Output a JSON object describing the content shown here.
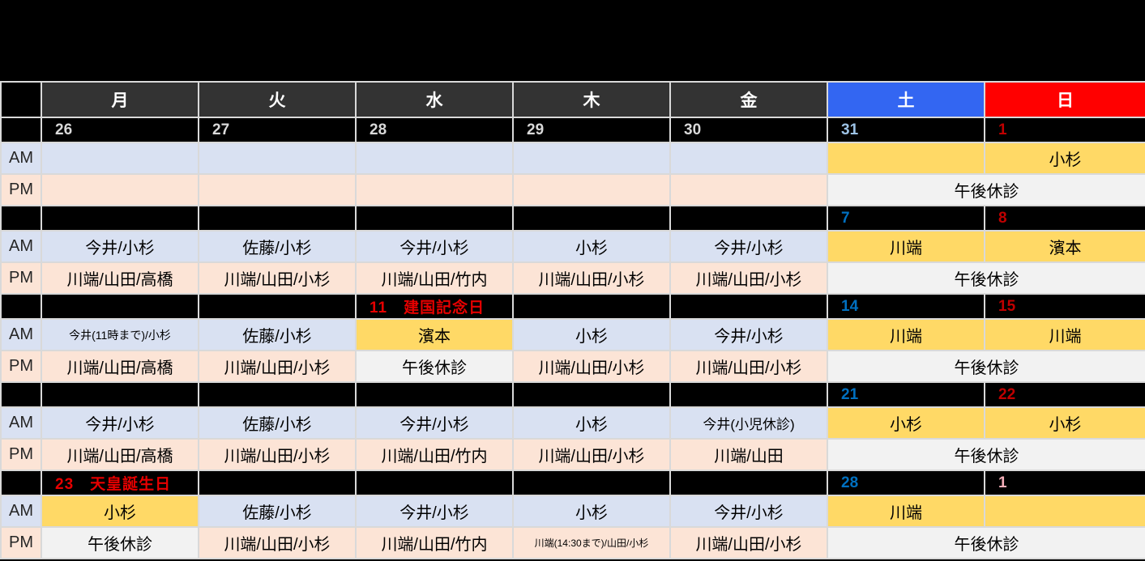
{
  "colors": {
    "page_bg": "#000000",
    "grid": "#D9D9D9",
    "weekday_header_bg": "#333333",
    "sat_header_bg": "#3366F2",
    "sun_header_bg": "#FF0000",
    "header_text": "#FFFFFF",
    "am_bg": "#D9E1F2",
    "pm_bg": "#FCE4D6",
    "duty_bg": "#FFD966",
    "closed_bg": "#F2F2F2",
    "date_bg": "#000000",
    "date_text": "#D9D9D9",
    "date_sat_blue": "#0070C0",
    "date_sun_red": "#C00000",
    "holiday_red": "#E60000"
  },
  "labels": {
    "am": "AM",
    "pm": "PM"
  },
  "header": {
    "days": [
      {
        "label": "月",
        "type": "weekday"
      },
      {
        "label": "火",
        "type": "weekday"
      },
      {
        "label": "水",
        "type": "weekday"
      },
      {
        "label": "木",
        "type": "weekday"
      },
      {
        "label": "金",
        "type": "weekday"
      },
      {
        "label": "土",
        "type": "sat"
      },
      {
        "label": "日",
        "type": "sun"
      }
    ]
  },
  "weeks": [
    {
      "dates": [
        {
          "t": "26",
          "color": "#D9D9D9"
        },
        {
          "t": "27",
          "color": "#D9D9D9"
        },
        {
          "t": "28",
          "color": "#D9D9D9"
        },
        {
          "t": "29",
          "color": "#D9D9D9"
        },
        {
          "t": "30",
          "color": "#D9D9D9"
        },
        {
          "t": "31",
          "color": "#9DC3E6"
        },
        {
          "t": "1",
          "color": "#C00000"
        }
      ],
      "am": [
        {
          "t": ""
        },
        {
          "t": ""
        },
        {
          "t": ""
        },
        {
          "t": ""
        },
        {
          "t": ""
        },
        {
          "t": "",
          "s": "duty"
        },
        {
          "t": "小杉",
          "s": "duty"
        }
      ],
      "pm": [
        {
          "t": ""
        },
        {
          "t": ""
        },
        {
          "t": ""
        },
        {
          "t": ""
        },
        {
          "t": ""
        },
        {
          "t": "午後休診",
          "s": "closed",
          "span": 2
        }
      ]
    },
    {
      "dates": [
        {
          "t": ""
        },
        {
          "t": ""
        },
        {
          "t": ""
        },
        {
          "t": ""
        },
        {
          "t": ""
        },
        {
          "t": "7",
          "color": "#0070C0"
        },
        {
          "t": "8",
          "color": "#C00000"
        }
      ],
      "am": [
        {
          "t": "今井/小杉"
        },
        {
          "t": "佐藤/小杉"
        },
        {
          "t": "今井/小杉"
        },
        {
          "t": "小杉"
        },
        {
          "t": "今井/小杉"
        },
        {
          "t": "川端",
          "s": "duty"
        },
        {
          "t": "濱本",
          "s": "duty"
        }
      ],
      "pm": [
        {
          "t": "川端/山田/高橋"
        },
        {
          "t": "川端/山田/小杉"
        },
        {
          "t": "川端/山田/竹内"
        },
        {
          "t": "川端/山田/小杉"
        },
        {
          "t": "川端/山田/小杉"
        },
        {
          "t": "午後休診",
          "s": "closed",
          "span": 2
        }
      ]
    },
    {
      "dates": [
        {
          "t": ""
        },
        {
          "t": ""
        },
        {
          "t": "11　建国記念日",
          "color": "#E60000",
          "holiday": true
        },
        {
          "t": ""
        },
        {
          "t": ""
        },
        {
          "t": "14",
          "color": "#0070C0"
        },
        {
          "t": "15",
          "color": "#C00000"
        }
      ],
      "am": [
        {
          "t": "今井(11時まで)/小杉",
          "size": 14
        },
        {
          "t": "佐藤/小杉"
        },
        {
          "t": "濱本",
          "s": "duty"
        },
        {
          "t": "小杉"
        },
        {
          "t": "今井/小杉"
        },
        {
          "t": "川端",
          "s": "duty"
        },
        {
          "t": "川端",
          "s": "duty"
        }
      ],
      "pm": [
        {
          "t": "川端/山田/高橋"
        },
        {
          "t": "川端/山田/小杉"
        },
        {
          "t": "午後休診",
          "s": "closed"
        },
        {
          "t": "川端/山田/小杉"
        },
        {
          "t": "川端/山田/小杉"
        },
        {
          "t": "午後休診",
          "s": "closed",
          "span": 2
        }
      ]
    },
    {
      "dates": [
        {
          "t": ""
        },
        {
          "t": ""
        },
        {
          "t": ""
        },
        {
          "t": ""
        },
        {
          "t": ""
        },
        {
          "t": "21",
          "color": "#0070C0"
        },
        {
          "t": "22",
          "color": "#C00000"
        }
      ],
      "am": [
        {
          "t": "今井/小杉"
        },
        {
          "t": "佐藤/小杉"
        },
        {
          "t": "今井/小杉"
        },
        {
          "t": "小杉"
        },
        {
          "t": "今井(小児休診)",
          "size": 17
        },
        {
          "t": "小杉",
          "s": "duty"
        },
        {
          "t": "小杉",
          "s": "duty"
        }
      ],
      "pm": [
        {
          "t": "川端/山田/高橋"
        },
        {
          "t": "川端/山田/小杉"
        },
        {
          "t": "川端/山田/竹内"
        },
        {
          "t": "川端/山田/小杉"
        },
        {
          "t": "川端/山田"
        },
        {
          "t": "午後休診",
          "s": "closed",
          "span": 2
        }
      ]
    },
    {
      "dates": [
        {
          "t": "23　天皇誕生日",
          "color": "#E60000",
          "holiday": true
        },
        {
          "t": ""
        },
        {
          "t": ""
        },
        {
          "t": ""
        },
        {
          "t": ""
        },
        {
          "t": "28",
          "color": "#0070C0"
        },
        {
          "t": "1",
          "color": "#F4AEB8"
        }
      ],
      "am": [
        {
          "t": "小杉",
          "s": "duty"
        },
        {
          "t": "佐藤/小杉"
        },
        {
          "t": "今井/小杉"
        },
        {
          "t": "小杉"
        },
        {
          "t": "今井/小杉"
        },
        {
          "t": "川端",
          "s": "duty"
        },
        {
          "t": "",
          "s": "duty"
        }
      ],
      "pm": [
        {
          "t": "午後休診",
          "s": "closed"
        },
        {
          "t": "川端/山田/小杉"
        },
        {
          "t": "川端/山田/竹内"
        },
        {
          "t": "川端(14:30まで)/山田/小杉",
          "size": 12
        },
        {
          "t": "川端/山田/小杉"
        },
        {
          "t": "午後休診",
          "s": "closed",
          "span": 2
        }
      ]
    }
  ]
}
